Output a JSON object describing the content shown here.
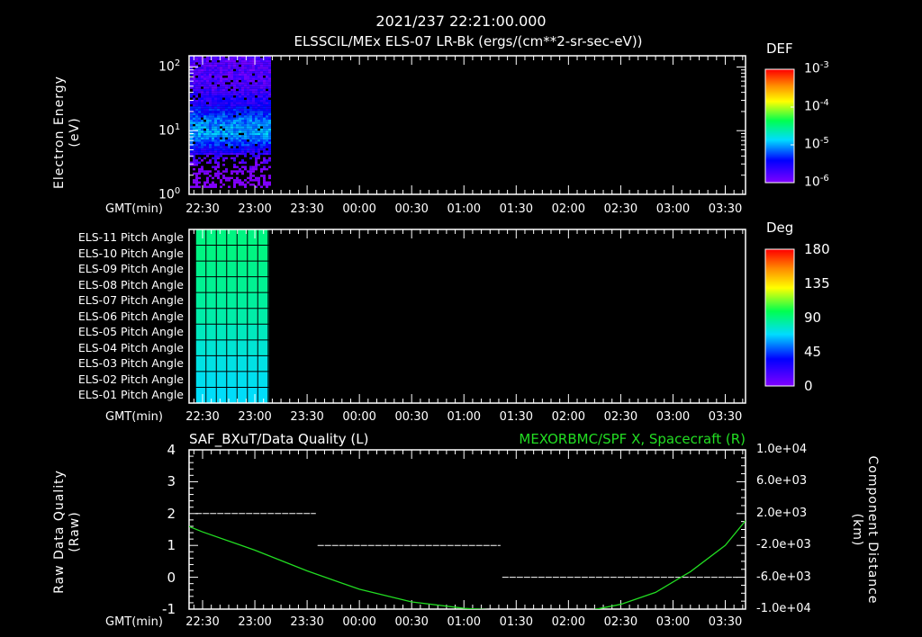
{
  "header": {
    "datetime": "2021/237 22:21:00.000",
    "panel1_title": "ELSSCIL/MEx ELS-07 LR-Bk  (ergs/(cm**2-sr-sec-eV))"
  },
  "time_axis": {
    "label": "GMT(min)",
    "ticks": [
      "22:30",
      "23:00",
      "23:30",
      "00:00",
      "00:30",
      "01:00",
      "01:30",
      "02:00",
      "02:30",
      "03:00",
      "03:30"
    ]
  },
  "chart_data": [
    {
      "type": "heatmap",
      "title": "ELSSCIL/MEx ELS-07 LR-Bk  (ergs/(cm**2-sr-sec-eV))",
      "ylabel": [
        "Electron Energy",
        "(eV)"
      ],
      "yscale": "log",
      "ylim": [
        1,
        150
      ],
      "yticks": [
        {
          "base": "10",
          "exp": "0"
        },
        {
          "base": "10",
          "exp": "1"
        },
        {
          "base": "10",
          "exp": "2"
        }
      ],
      "data_time_range_min": [
        -8,
        38
      ],
      "energy_profile": {
        "energy_eV": [
          1.5,
          2.5,
          4,
          6,
          9,
          14,
          25,
          50,
          100,
          140
        ],
        "log10_def": [
          -6.2,
          -6.0,
          -5.7,
          -5.3,
          -5.0,
          -5.1,
          -5.5,
          -5.75,
          -5.8,
          -5.8
        ]
      },
      "colorbar": {
        "label": "DEF",
        "scale": "log",
        "range": [
          -6,
          -3
        ],
        "ticks": [
          {
            "base": "10",
            "exp": "-3"
          },
          {
            "base": "10",
            "exp": "-4"
          },
          {
            "base": "10",
            "exp": "-5"
          },
          {
            "base": "10",
            "exp": "-6"
          }
        ]
      }
    },
    {
      "type": "heatmap",
      "rows": [
        "ELS-11 Pitch Angle",
        "ELS-10 Pitch Angle",
        "ELS-09 Pitch Angle",
        "ELS-08 Pitch Angle",
        "ELS-07 Pitch Angle",
        "ELS-06 Pitch Angle",
        "ELS-05 Pitch Angle",
        "ELS-04 Pitch Angle",
        "ELS-03 Pitch Angle",
        "ELS-02 Pitch Angle",
        "ELS-01 Pitch Angle"
      ],
      "values_deg": [
        95,
        95,
        93,
        92,
        90,
        88,
        84,
        80,
        77,
        75,
        73
      ],
      "data_time_range_min": [
        -4,
        38
      ],
      "colorbar": {
        "label": "Deg",
        "range": [
          0,
          180
        ],
        "ticks": [
          "180",
          "135",
          "90",
          "45",
          "0"
        ]
      }
    },
    {
      "type": "line",
      "title_left": "SAF_BXuT/Data Quality (L)",
      "title_right": "MEXORBMC/SPF X, Spacecraft (R)",
      "ylabel_left": [
        "Raw Data Quality",
        "(Raw)"
      ],
      "ylabel_right": [
        "Component Distance",
        "(km)"
      ],
      "ylim_left": [
        -1,
        4
      ],
      "ylim_right": [
        -10000,
        10000
      ],
      "yticks_left": [
        "4",
        "3",
        "2",
        "1",
        "0",
        "-1"
      ],
      "yticks_right": [
        "1.0e+04",
        "6.0e+03",
        "2.0e+03",
        "-2.0e+03",
        "-6.0e+03",
        "-1.0e+04"
      ],
      "x_units": "minutes since 22:30",
      "series": [
        {
          "name": "Data Quality",
          "color": "#ffffff",
          "axis": "left",
          "segments": [
            {
              "x": [
                -4,
                65
              ],
              "y": 2
            },
            {
              "x": [
                66,
                171
              ],
              "y": 1
            },
            {
              "x": [
                172,
                307
              ],
              "y": 0
            }
          ]
        },
        {
          "name": "SPF X",
          "color": "#22dd22",
          "axis": "right",
          "x": [
            -8,
            0,
            30,
            60,
            90,
            120,
            150,
            166,
            195,
            225,
            240,
            260,
            280,
            300,
            312
          ],
          "y": [
            400,
            -300,
            -2600,
            -5200,
            -7500,
            -9100,
            -9900,
            -10100,
            -10600,
            -10050,
            -9400,
            -7900,
            -5300,
            -2000,
            1200
          ]
        }
      ]
    }
  ],
  "colors": {
    "green_title": "#22dd22",
    "axis": "#ffffff"
  }
}
